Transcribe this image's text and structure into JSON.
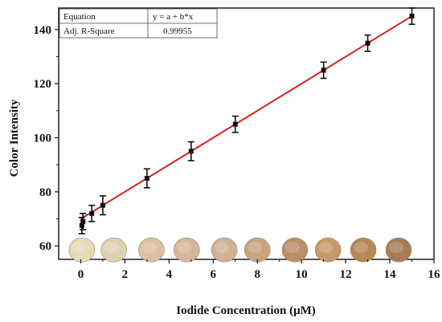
{
  "chart_data": {
    "type": "scatter",
    "title": "",
    "xlabel": "Iodide Concentration (μM)",
    "ylabel": "Color Intensity",
    "xlim": [
      -1,
      16
    ],
    "ylim": [
      55,
      148
    ],
    "x_ticks": [
      0,
      2,
      4,
      6,
      8,
      10,
      12,
      14,
      16
    ],
    "y_ticks": [
      60,
      80,
      100,
      120,
      140
    ],
    "grid": false,
    "legend": "none",
    "series": [
      {
        "marker": "square",
        "color": "#111111",
        "points": [
          {
            "x": 0.05,
            "y": 67.5,
            "err": 3.0
          },
          {
            "x": 0.1,
            "y": 69.0,
            "err": 3.0
          },
          {
            "x": 0.5,
            "y": 72.0,
            "err": 3.0
          },
          {
            "x": 1.0,
            "y": 75.0,
            "err": 3.5
          },
          {
            "x": 3.0,
            "y": 85.0,
            "err": 3.5
          },
          {
            "x": 5.0,
            "y": 95.0,
            "err": 3.5
          },
          {
            "x": 7.0,
            "y": 105.0,
            "err": 3.0
          },
          {
            "x": 11.0,
            "y": 125.0,
            "err": 3.0
          },
          {
            "x": 13.0,
            "y": 135.0,
            "err": 3.0
          },
          {
            "x": 15.0,
            "y": 145.0,
            "err": 3.0
          }
        ]
      }
    ],
    "fit_line": {
      "color": "#d62020",
      "intercept": 70,
      "slope": 5.0,
      "x_range": [
        0,
        15
      ]
    },
    "fit_table": {
      "rows": [
        {
          "label": "Equation",
          "value": "y = a + b*x"
        },
        {
          "label": "Adj. R-Square",
          "value": "0.99955"
        }
      ]
    },
    "sample_spots": [
      {
        "x": 0.05,
        "color": "#e3dcb6"
      },
      {
        "x": 1.5,
        "color": "#ded0b2"
      },
      {
        "x": 3.2,
        "color": "#dcc0a4"
      },
      {
        "x": 4.8,
        "color": "#d5b698"
      },
      {
        "x": 6.5,
        "color": "#d0b294"
      },
      {
        "x": 8.0,
        "color": "#c8a47e"
      },
      {
        "x": 9.7,
        "color": "#b99068"
      },
      {
        "x": 11.2,
        "color": "#c59a6a"
      },
      {
        "x": 12.8,
        "color": "#b88756"
      },
      {
        "x": 14.4,
        "color": "#a87c56"
      }
    ]
  }
}
